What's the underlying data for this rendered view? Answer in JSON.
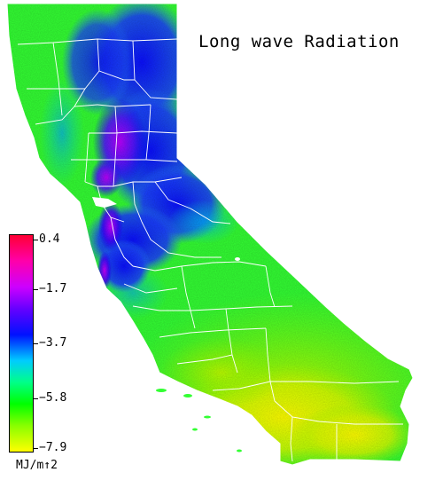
{
  "title": "Long wave Radiation",
  "legend": {
    "ticks": [
      {
        "label": "0.4",
        "value": 0.4
      },
      {
        "label": "−1.7",
        "value": -1.7
      },
      {
        "label": "−3.7",
        "value": -3.7
      },
      {
        "label": "−5.8",
        "value": -5.8
      },
      {
        "label": "−7.9",
        "value": -7.9
      }
    ],
    "unit": "MJ/m↑2",
    "min": -7.9,
    "max": 0.4
  },
  "colors": {
    "high": "#ff0033",
    "mid_high": "#cc00ff",
    "mid": "#0011ff",
    "mid_low": "#00ff00",
    "low": "#ffff00",
    "county_lines": "#ffffff"
  }
}
